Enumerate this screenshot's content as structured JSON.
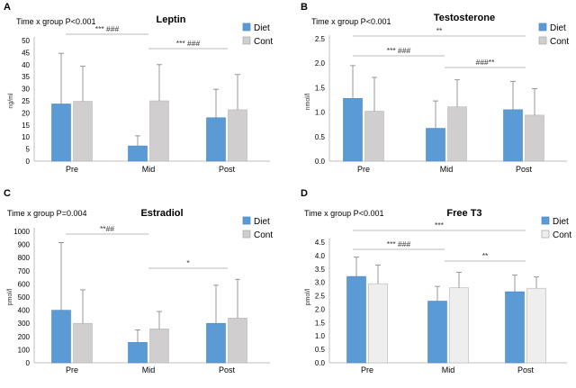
{
  "chart_data": [
    {
      "type": "bar",
      "panel": "A",
      "title": "Leptin",
      "effect_text": "Time x group P<0.001",
      "ylabel": "ng/ml",
      "xlabel": "",
      "ylim": [
        0,
        50
      ],
      "yticks": [
        0,
        5,
        10,
        15,
        20,
        25,
        30,
        35,
        40,
        45,
        50
      ],
      "categories": [
        "Pre",
        "Mid",
        "Post"
      ],
      "series": [
        {
          "name": "Diet",
          "color": "#5b9bd5",
          "values": [
            23.7,
            6.3,
            18
          ],
          "errors": [
            21,
            4.2,
            11.8
          ]
        },
        {
          "name": "Cont",
          "color": "#d0cece",
          "values": [
            24.8,
            25,
            21.3
          ],
          "errors": [
            14.5,
            15,
            14.6
          ]
        }
      ],
      "annotations": [
        {
          "text": "*** ###",
          "from": 0,
          "to": 1
        },
        {
          "text": "*** ###",
          "from": 1,
          "to": 2
        }
      ]
    },
    {
      "type": "bar",
      "panel": "B",
      "title": "Testosterone",
      "effect_text": "Time x group P<0.001",
      "ylabel": "nmol/l",
      "xlabel": "",
      "ylim": [
        0,
        2.5
      ],
      "yticks": [
        "0.0",
        "0.5",
        "1.0",
        "1.5",
        "2.0",
        "2.5"
      ],
      "categories": [
        "Pre",
        "Mid",
        "Post"
      ],
      "series": [
        {
          "name": "Diet",
          "color": "#5b9bd5",
          "values": [
            1.28,
            0.67,
            1.05
          ],
          "errors": [
            0.67,
            0.56,
            0.58
          ]
        },
        {
          "name": "Cont",
          "color": "#d0cece",
          "values": [
            1.02,
            1.11,
            0.94
          ],
          "errors": [
            0.69,
            0.55,
            0.54
          ]
        }
      ],
      "annotations": [
        {
          "text": "**",
          "from": 0,
          "to": 2
        },
        {
          "text": "*** ###",
          "from": 0,
          "to": 1
        },
        {
          "text": "###**",
          "from": 1,
          "to": 2
        }
      ]
    },
    {
      "type": "bar",
      "panel": "C",
      "title": "Estradiol",
      "effect_text": "Time x group P=0.004",
      "ylabel": "pmol/l",
      "xlabel": "",
      "ylim": [
        0,
        1000
      ],
      "yticks": [
        0,
        100,
        200,
        300,
        400,
        500,
        600,
        700,
        800,
        900,
        1000
      ],
      "categories": [
        "Pre",
        "Mid",
        "Post"
      ],
      "series": [
        {
          "name": "Diet",
          "color": "#5b9bd5",
          "values": [
            400,
            155,
            300
          ],
          "errors": [
            515,
            95,
            290
          ]
        },
        {
          "name": "Cont",
          "color": "#d0cece",
          "values": [
            300,
            258,
            340
          ],
          "errors": [
            255,
            132,
            295
          ]
        }
      ],
      "annotations": [
        {
          "text": "**##",
          "from": 0,
          "to": 1
        },
        {
          "text": "*",
          "from": 1,
          "to": 2
        }
      ]
    },
    {
      "type": "bar",
      "panel": "D",
      "title": "Free T3",
      "effect_text": "Time x group P<0.001",
      "ylabel": "pmol/l",
      "xlabel": "",
      "ylim": [
        0,
        4.5
      ],
      "yticks": [
        "0.0",
        "0.5",
        "1.0",
        "1.5",
        "2.0",
        "2.5",
        "3.0",
        "3.5",
        "4.0",
        "4.5"
      ],
      "categories": [
        "Pre",
        "Mid",
        "Post"
      ],
      "series": [
        {
          "name": "Diet",
          "color": "#5b9bd5",
          "values": [
            3.22,
            2.3,
            2.65
          ],
          "errors": [
            0.72,
            0.55,
            0.62
          ]
        },
        {
          "name": "Cont",
          "color": "#eeeeee",
          "values": [
            2.95,
            2.8,
            2.78
          ],
          "errors": [
            0.7,
            0.58,
            0.42
          ]
        }
      ],
      "annotations": [
        {
          "text": "***",
          "from": 0,
          "to": 2
        },
        {
          "text": "*** ###",
          "from": 0,
          "to": 1
        },
        {
          "text": "**",
          "from": 1,
          "to": 2
        }
      ]
    }
  ]
}
